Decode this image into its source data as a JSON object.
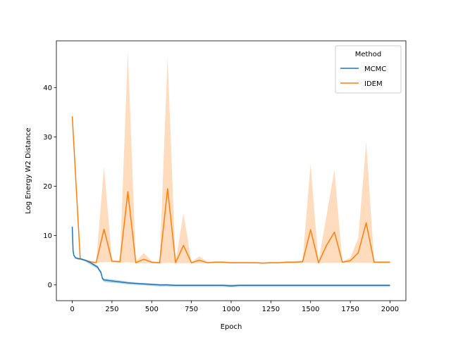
{
  "chart_data": {
    "type": "line",
    "xlabel": "Epoch",
    "ylabel": "Log Energy W2 Distance",
    "xlim": [
      -100,
      2100
    ],
    "ylim": [
      -3.2,
      49.5
    ],
    "xticks": [
      0,
      250,
      500,
      750,
      1000,
      1250,
      1500,
      1750,
      2000
    ],
    "yticks": [
      0,
      10,
      20,
      30,
      40
    ],
    "grid": false,
    "legend": {
      "title": "Method",
      "placement": "top-right"
    },
    "series": [
      {
        "name": "MCMC",
        "color": "#1f77b4",
        "x": [
          0,
          5,
          10,
          20,
          30,
          40,
          50,
          60,
          70,
          80,
          90,
          100,
          110,
          120,
          130,
          140,
          150,
          160,
          170,
          180,
          190,
          200,
          250,
          300,
          350,
          400,
          450,
          500,
          550,
          600,
          650,
          700,
          750,
          800,
          850,
          900,
          950,
          1000,
          1050,
          1100,
          1150,
          1200,
          1250,
          1300,
          1350,
          1400,
          1450,
          1500,
          1550,
          1600,
          1650,
          1700,
          1750,
          1800,
          1850,
          1900,
          1950,
          2000
        ],
        "y": [
          11.8,
          7.0,
          6.0,
          5.5,
          5.4,
          5.3,
          5.3,
          5.2,
          5.1,
          5.0,
          4.9,
          4.7,
          4.6,
          4.4,
          4.2,
          4.0,
          3.8,
          3.6,
          3.0,
          2.6,
          1.3,
          1.0,
          0.8,
          0.6,
          0.4,
          0.3,
          0.2,
          0.1,
          0.0,
          0.0,
          -0.1,
          -0.1,
          -0.1,
          -0.1,
          -0.1,
          -0.1,
          -0.1,
          -0.2,
          -0.1,
          -0.1,
          -0.1,
          -0.1,
          -0.1,
          -0.1,
          -0.1,
          -0.1,
          -0.1,
          -0.1,
          -0.1,
          -0.1,
          -0.1,
          -0.1,
          -0.1,
          -0.1,
          -0.1,
          -0.1,
          -0.1,
          -0.1
        ],
        "lower": [
          11.5,
          6.8,
          5.8,
          5.3,
          5.2,
          5.1,
          5.1,
          5.0,
          4.9,
          4.8,
          4.6,
          4.4,
          4.2,
          4.0,
          3.8,
          3.6,
          3.4,
          3.2,
          2.7,
          2.2,
          0.9,
          0.6,
          0.4,
          0.3,
          0.1,
          0.0,
          -0.1,
          -0.2,
          -0.3,
          -0.3,
          -0.4,
          -0.4,
          -0.4,
          -0.4,
          -0.4,
          -0.4,
          -0.4,
          -0.5,
          -0.4,
          -0.4,
          -0.4,
          -0.4,
          -0.4,
          -0.4,
          -0.4,
          -0.4,
          -0.4,
          -0.4,
          -0.4,
          -0.4,
          -0.4,
          -0.4,
          -0.4,
          -0.4,
          -0.4,
          -0.4,
          -0.4,
          -0.4
        ],
        "upper": [
          12.2,
          7.3,
          6.2,
          5.7,
          5.6,
          5.5,
          5.5,
          5.4,
          5.3,
          5.2,
          5.1,
          5.0,
          4.9,
          4.7,
          4.5,
          4.3,
          4.1,
          3.9,
          3.3,
          2.9,
          1.6,
          1.3,
          1.1,
          0.9,
          0.7,
          0.5,
          0.4,
          0.3,
          0.2,
          0.2,
          0.1,
          0.1,
          0.1,
          0.1,
          0.1,
          0.1,
          0.1,
          0.1,
          0.1,
          0.1,
          0.1,
          0.1,
          0.1,
          0.1,
          0.1,
          0.1,
          0.1,
          0.1,
          0.1,
          0.1,
          0.1,
          0.1,
          0.1,
          0.1,
          0.1,
          0.1,
          0.1,
          0.1
        ]
      },
      {
        "name": "IDEM",
        "color": "#ff7f0e",
        "band_color": "#ffdcbd",
        "x": [
          0,
          50,
          100,
          150,
          200,
          250,
          300,
          350,
          400,
          450,
          500,
          550,
          600,
          650,
          700,
          750,
          800,
          850,
          900,
          950,
          1000,
          1050,
          1100,
          1150,
          1200,
          1250,
          1300,
          1350,
          1400,
          1450,
          1500,
          1550,
          1600,
          1650,
          1700,
          1750,
          1800,
          1850,
          1900,
          1950,
          2000
        ],
        "y": [
          34.2,
          5.3,
          4.8,
          4.5,
          11.3,
          4.8,
          4.7,
          18.9,
          4.5,
          5.2,
          4.6,
          4.5,
          19.5,
          4.5,
          8.0,
          4.5,
          5.0,
          4.5,
          4.6,
          4.6,
          4.5,
          4.5,
          4.5,
          4.5,
          4.4,
          4.5,
          4.5,
          4.6,
          4.6,
          4.7,
          11.2,
          4.5,
          8.0,
          10.7,
          4.6,
          4.9,
          6.5,
          12.6,
          4.6,
          4.6,
          4.6
        ],
        "lower": [
          34.2,
          5.3,
          4.8,
          4.5,
          4.6,
          4.6,
          4.5,
          4.6,
          4.4,
          4.4,
          4.4,
          4.4,
          4.5,
          4.4,
          4.4,
          4.4,
          4.4,
          4.4,
          4.5,
          4.5,
          4.4,
          4.4,
          4.4,
          4.4,
          4.3,
          4.4,
          4.4,
          4.5,
          4.5,
          4.5,
          4.5,
          4.4,
          4.5,
          4.5,
          4.5,
          4.5,
          4.5,
          4.5,
          4.5,
          4.5,
          4.5
        ],
        "upper": [
          34.2,
          5.3,
          4.8,
          4.5,
          24.0,
          5.0,
          4.9,
          47.3,
          4.7,
          6.5,
          4.8,
          4.7,
          46.2,
          4.7,
          14.5,
          4.7,
          5.8,
          4.7,
          4.8,
          4.8,
          4.7,
          4.7,
          4.7,
          4.7,
          4.6,
          4.7,
          4.7,
          4.8,
          4.8,
          5.0,
          24.5,
          4.7,
          14.0,
          23.3,
          4.8,
          5.5,
          9.5,
          29.0,
          4.8,
          4.8,
          4.8
        ]
      }
    ]
  }
}
